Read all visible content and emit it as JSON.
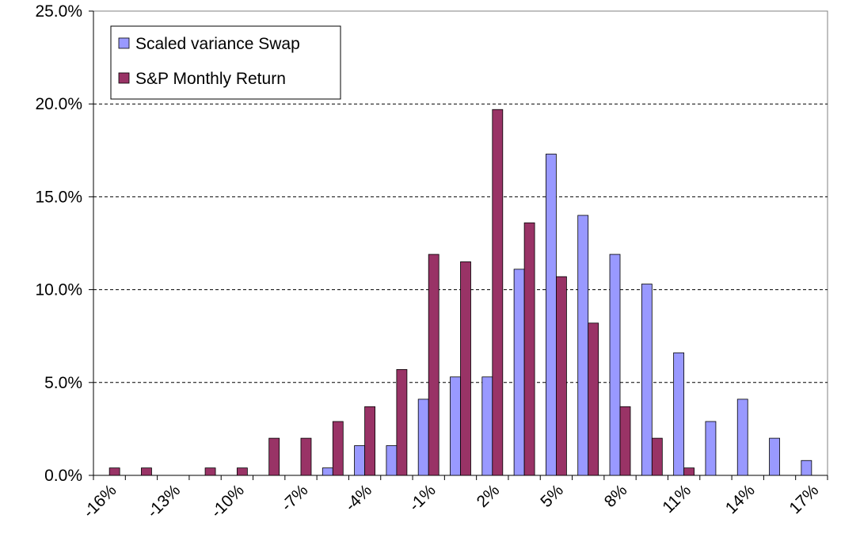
{
  "chart_data": {
    "type": "bar",
    "categories": [
      "-16%",
      null,
      "-13%",
      null,
      "-10%",
      null,
      "-7%",
      null,
      "-4%",
      null,
      "-1%",
      null,
      "2%",
      null,
      "5%",
      null,
      "8%",
      null,
      "11%",
      null,
      "14%",
      null,
      "17%"
    ],
    "series": [
      {
        "name": "Scaled variance Swap",
        "color": "#9999ff",
        "values": [
          0,
          0,
          0,
          0,
          0,
          0,
          0,
          0.4,
          1.6,
          1.6,
          4.1,
          5.3,
          5.3,
          11.1,
          17.3,
          14.0,
          11.9,
          10.3,
          6.6,
          2.9,
          4.1,
          2.0,
          0.8
        ]
      },
      {
        "name": "S&P Monthly Return",
        "color": "#993366",
        "values": [
          0.4,
          0.4,
          0,
          0.4,
          0.4,
          2.0,
          2.0,
          2.9,
          3.7,
          5.7,
          11.9,
          11.5,
          19.7,
          13.6,
          10.7,
          8.2,
          3.7,
          2.0,
          0.4,
          0,
          0,
          0,
          0
        ]
      }
    ],
    "ylim": [
      0,
      25
    ],
    "yticks": [
      {
        "value": 0,
        "label": "0.0%"
      },
      {
        "value": 5,
        "label": "5.0%"
      },
      {
        "value": 10,
        "label": "10.0%"
      },
      {
        "value": 15,
        "label": "15.0%"
      },
      {
        "value": 20,
        "label": "20.0%"
      },
      {
        "value": 25,
        "label": "25.0%"
      }
    ],
    "grid": true,
    "legend": "upper-left"
  }
}
